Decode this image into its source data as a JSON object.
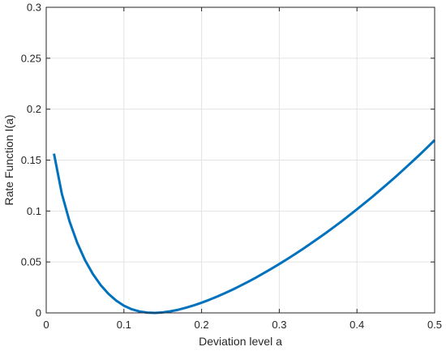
{
  "chart_data": {
    "type": "line",
    "title": "",
    "xlabel": "Deviation level a",
    "ylabel": "Rate Function I(a)",
    "xlim": [
      0,
      0.5
    ],
    "ylim": [
      0,
      0.3
    ],
    "x_ticks": [
      "0",
      "0.1",
      "0.2",
      "0.3",
      "0.4",
      "0.5"
    ],
    "y_ticks": [
      "0",
      "0.05",
      "0.1",
      "0.15",
      "0.2",
      "0.25",
      "0.3"
    ],
    "grid": true,
    "series": [
      {
        "color": "#0072BD",
        "x": [
          0.01,
          0.02,
          0.03,
          0.04,
          0.05,
          0.06,
          0.07,
          0.08,
          0.09,
          0.1,
          0.11,
          0.12,
          0.13,
          0.14,
          0.15,
          0.16,
          0.17,
          0.18,
          0.19,
          0.2,
          0.21,
          0.22,
          0.23,
          0.24,
          0.25,
          0.26,
          0.27,
          0.28,
          0.29,
          0.3,
          0.31,
          0.32,
          0.33,
          0.34,
          0.35,
          0.36,
          0.37,
          0.38,
          0.39,
          0.4,
          0.41,
          0.42,
          0.43,
          0.44,
          0.45,
          0.46,
          0.47,
          0.48,
          0.49,
          0.5
        ],
        "y": [
          0.1563,
          0.1173,
          0.0898,
          0.0686,
          0.0517,
          0.0382,
          0.0274,
          0.0188,
          0.0121,
          0.0071,
          0.0036,
          0.0014,
          0.0003,
          0.0,
          0.0005,
          0.0016,
          0.0031,
          0.0051,
          0.0074,
          0.01,
          0.0129,
          0.016,
          0.0194,
          0.0229,
          0.0267,
          0.0306,
          0.0347,
          0.039,
          0.0434,
          0.048,
          0.0527,
          0.0576,
          0.0626,
          0.0678,
          0.0731,
          0.0785,
          0.0841,
          0.0898,
          0.0957,
          0.1017,
          0.1079,
          0.1141,
          0.1206,
          0.1271,
          0.1338,
          0.1407,
          0.1477,
          0.1548,
          0.1621,
          0.1696
        ]
      }
    ]
  }
}
